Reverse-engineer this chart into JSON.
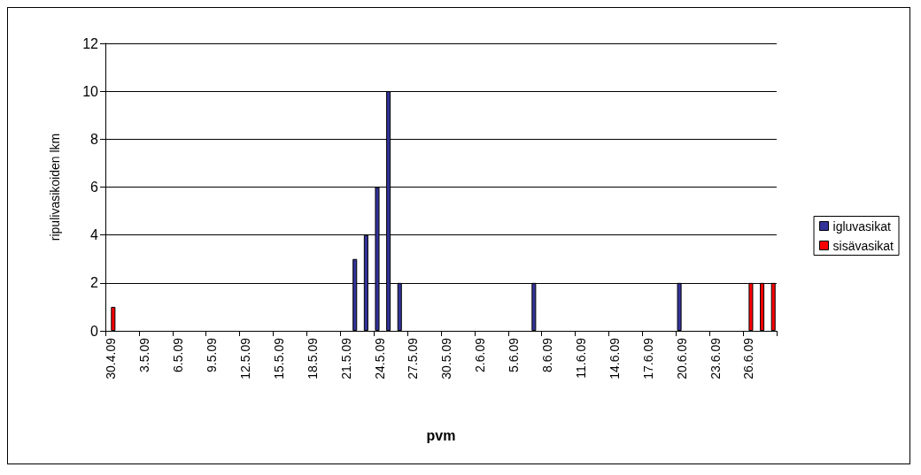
{
  "chart_data": {
    "type": "bar",
    "xlabel": "pvm",
    "ylabel": "ripulivasikoiden lkm",
    "categories": [
      "30.4.09",
      null,
      null,
      "3.5.09",
      null,
      null,
      "6.5.09",
      null,
      null,
      "9.5.09",
      null,
      null,
      "12.5.09",
      null,
      null,
      "15.5.09",
      null,
      null,
      "18.5.09",
      null,
      null,
      "21.5.09",
      null,
      null,
      "24.5.09",
      null,
      null,
      "27.5.09",
      null,
      null,
      "30.5.09",
      null,
      null,
      "2.6.09",
      null,
      null,
      "5.6.09",
      null,
      null,
      "8.6.09",
      null,
      null,
      "11.6.09",
      null,
      null,
      "14.6.09",
      null,
      null,
      "17.6.09",
      null,
      null,
      "20.6.09",
      null,
      null,
      "23.6.09",
      null,
      null,
      "26.6.09",
      null,
      null
    ],
    "series": [
      {
        "name": "igluvasikat",
        "color": "#333399",
        "values": [
          0,
          0,
          0,
          0,
          0,
          0,
          0,
          0,
          0,
          0,
          0,
          0,
          0,
          0,
          0,
          0,
          0,
          0,
          0,
          0,
          0,
          0,
          3,
          4,
          6,
          10,
          2,
          0,
          0,
          0,
          0,
          0,
          0,
          0,
          0,
          0,
          0,
          0,
          2,
          0,
          0,
          0,
          0,
          0,
          0,
          0,
          0,
          0,
          0,
          0,
          0,
          2,
          0,
          0,
          0,
          0,
          0,
          0,
          0,
          0
        ]
      },
      {
        "name": "sisävasikat",
        "color": "#ff0000",
        "values": [
          1,
          0,
          0,
          0,
          0,
          0,
          0,
          0,
          0,
          0,
          0,
          0,
          0,
          0,
          0,
          0,
          0,
          0,
          0,
          0,
          0,
          0,
          0,
          0,
          0,
          0,
          0,
          0,
          0,
          0,
          0,
          0,
          0,
          0,
          0,
          0,
          0,
          0,
          0,
          0,
          0,
          0,
          0,
          0,
          0,
          0,
          0,
          0,
          0,
          0,
          0,
          0,
          0,
          0,
          0,
          0,
          0,
          2,
          2,
          2
        ]
      }
    ],
    "ylim": [
      0,
      12
    ],
    "yticks": [
      0,
      2,
      4,
      6,
      8,
      10,
      12
    ],
    "grid": "y",
    "legend": "right"
  }
}
